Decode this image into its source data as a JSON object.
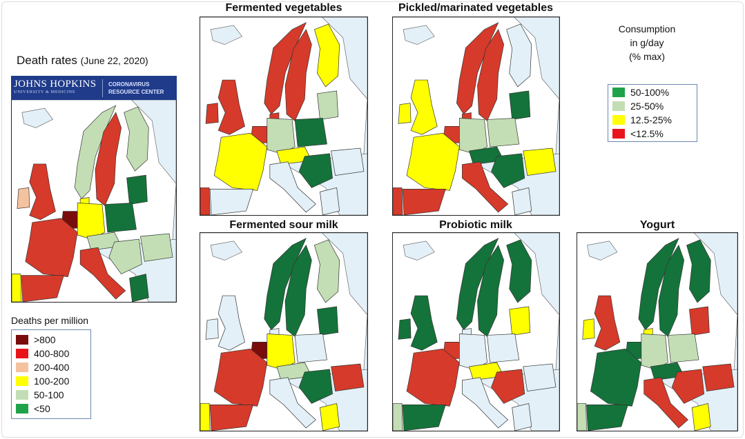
{
  "colors": {
    "gt800": "#7a0c0c",
    "r400_800": "#e8141a",
    "r200_400": "#f5c2a0",
    "r100_200": "#ffff00",
    "r50_100": "#c3deb4",
    "lt50": "#1fa34a",
    "c50_100": "#1fa34a",
    "c25_50": "#c3deb4",
    "c12_25": "#ffff00",
    "clt12": "#e8141a",
    "dg": "#14733a",
    "lg": "#c3deb4",
    "y": "#ffff00",
    "r": "#d63a2a",
    "dr": "#7a0c0c",
    "pk": "#f5c2a0",
    "base": "#e3f0f7"
  },
  "death_rates": {
    "title": "Death rates",
    "date": "(June 22, 2020)",
    "logo": {
      "left_top": "JOHNS HOPKINS",
      "left_bottom": "UNIVERSITY & MEDICINE",
      "right_top": "CORONAVIRUS",
      "right_bottom": "RESOURCE CENTER"
    },
    "legend_title": "Deaths per million",
    "legend": [
      {
        "label": ">800",
        "color": "#7a0c0c"
      },
      {
        "label": "400-800",
        "color": "#e8141a"
      },
      {
        "label": "200-400",
        "color": "#f5c2a0"
      },
      {
        "label": "100-200",
        "color": "#ffff00"
      },
      {
        "label": "50-100",
        "color": "#c3deb4"
      },
      {
        "label": "<50",
        "color": "#1fa34a"
      }
    ],
    "countries": {
      "norway": "lg",
      "sweden": "r",
      "finland": "lg",
      "baltics": "dg",
      "uk": "r",
      "ireland": "pk",
      "denmark": "y",
      "benelux": "dr",
      "france": "r",
      "spain": "r",
      "portugal": "y",
      "germany": "y",
      "poland": "dg",
      "czech_austria": "lg",
      "hungary_balkans": "lg",
      "romania": "lg",
      "italy": "r",
      "greece": "dg"
    }
  },
  "consumption_legend": {
    "title_1": "Consumption",
    "title_2": "in g/day",
    "title_3": "(% max)",
    "items": [
      {
        "label": "50-100%",
        "color": "#1fa34a"
      },
      {
        "label": "25-50%",
        "color": "#c3deb4"
      },
      {
        "label": "12.5-25%",
        "color": "#ffff00"
      },
      {
        "label": "<12.5%",
        "color": "#e8141a"
      }
    ]
  },
  "panels": [
    {
      "title": "Fermented vegetables",
      "countries": {
        "norway": "r",
        "sweden": "r",
        "finland": "y",
        "baltics": "lg",
        "uk": "r",
        "ireland": "r",
        "denmark": "r",
        "benelux": "r",
        "france": "y",
        "portugal": "r",
        "germany": "lg",
        "poland": "dg",
        "czech_austria": "y",
        "hungary_balkans": "dg"
      }
    },
    {
      "title": "Pickled/marinated vegetables",
      "countries": {
        "norway": "r",
        "sweden": "r",
        "baltics": "dg",
        "uk": "y",
        "ireland": "y",
        "denmark": "r",
        "benelux": "r",
        "france": "y",
        "spain": "r",
        "portugal": "r",
        "germany": "lg",
        "poland": "lg",
        "czech_austria": "dg",
        "hungary_balkans": "dg",
        "romania": "y",
        "italy": "r"
      }
    },
    {
      "title": "Fermented sour milk",
      "countries": {
        "norway": "dg",
        "sweden": "dg",
        "finland": "lg",
        "baltics": "dg",
        "benelux": "dr",
        "france": "r",
        "spain": "r",
        "portugal": "y",
        "germany": "y",
        "czech_austria": "lg",
        "hungary_balkans": "dg",
        "romania": "r",
        "greece": "y"
      }
    },
    {
      "title": "Probiotic milk",
      "countries": {
        "norway": "dg",
        "sweden": "dg",
        "finland": "dg",
        "baltics": "y",
        "uk": "dg",
        "ireland": "dg",
        "benelux": "r",
        "france": "r",
        "spain": "dg",
        "portugal": "lg",
        "czech_austria": "y",
        "hungary_balkans": "r"
      }
    },
    {
      "title": "Yogurt",
      "countries": {
        "norway": "dg",
        "sweden": "dg",
        "finland": "dg",
        "baltics": "r",
        "uk": "r",
        "ireland": "y",
        "denmark": "y",
        "benelux": "dg",
        "france": "dg",
        "spain": "dg",
        "portugal": "lg",
        "germany": "lg",
        "poland": "lg",
        "czech_austria": "dg",
        "hungary_balkans": "r",
        "romania": "r",
        "italy": "r",
        "greece": "y"
      }
    }
  ]
}
